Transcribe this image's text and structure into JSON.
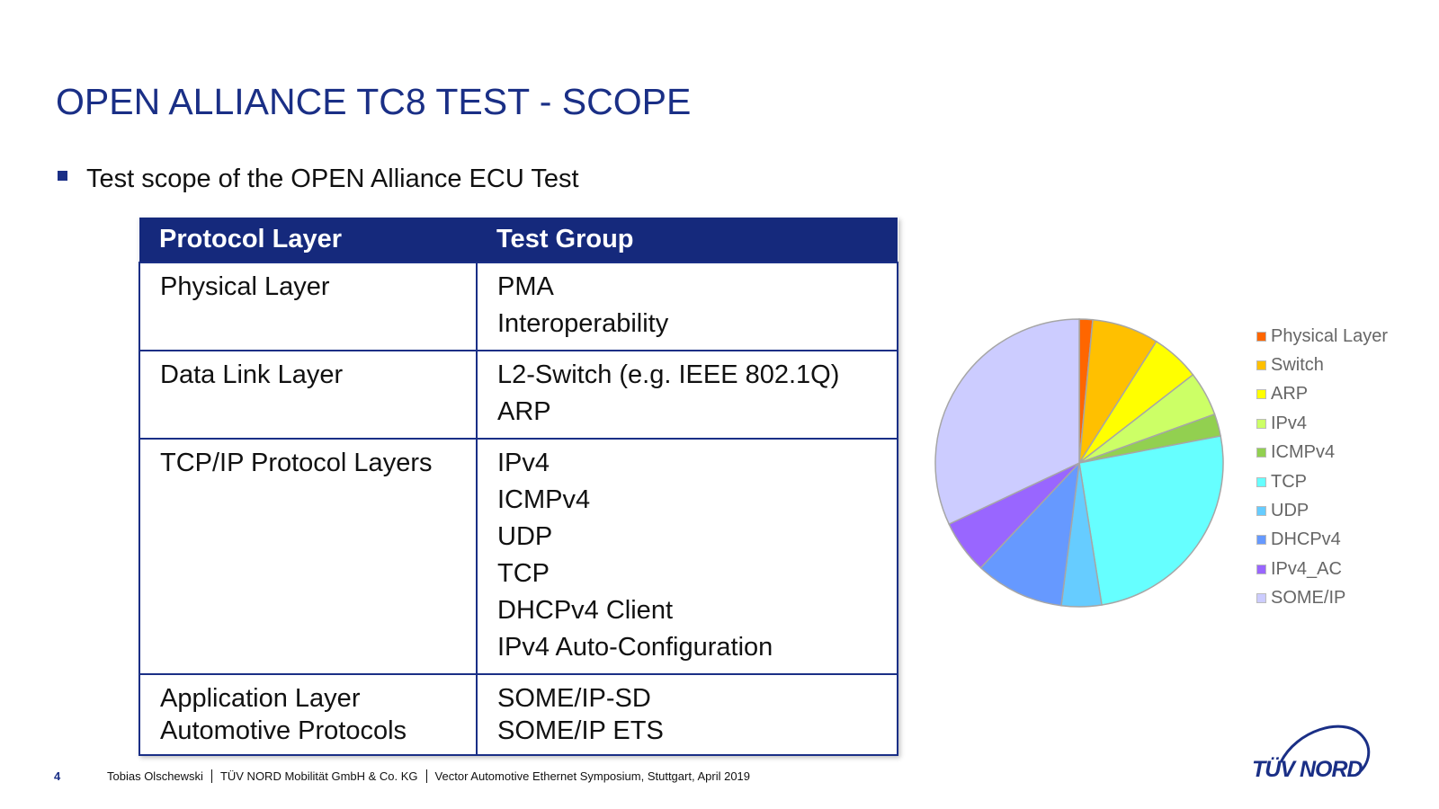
{
  "slide": {
    "title": "OPEN ALLIANCE TC8 TEST - SCOPE",
    "bullet": "Test scope of the OPEN Alliance ECU Test"
  },
  "table": {
    "headers": [
      "Protocol Layer",
      "Test Group"
    ],
    "rows": [
      {
        "layer": [
          "Physical Layer"
        ],
        "groups": [
          "PMA",
          "Interoperability"
        ]
      },
      {
        "layer": [
          "Data Link Layer"
        ],
        "groups": [
          "L2-Switch (e.g. IEEE 802.1Q)",
          "ARP"
        ]
      },
      {
        "layer": [
          "TCP/IP Protocol Layers"
        ],
        "groups": [
          "IPv4",
          "ICMPv4",
          "UDP",
          "TCP",
          "DHCPv4 Client",
          "IPv4 Auto-Configuration"
        ]
      },
      {
        "layer": [
          "Application Layer",
          "Automotive Protocols"
        ],
        "groups": [
          "SOME/IP-SD",
          "SOME/IP ETS"
        ]
      }
    ]
  },
  "chart_data": {
    "type": "pie",
    "categories": [
      "Physical Layer",
      "Switch",
      "ARP",
      "IPv4",
      "ICMPv4",
      "TCP",
      "UDP",
      "DHCPv4",
      "IPv4_AC",
      "SOME/IP"
    ],
    "values": [
      1.5,
      7.5,
      5.5,
      5,
      2.5,
      25.5,
      4.5,
      10,
      6,
      32
    ],
    "colors": [
      "#ff6600",
      "#ffc000",
      "#ffff00",
      "#ccff66",
      "#92d050",
      "#66ffff",
      "#66ccff",
      "#6699ff",
      "#9966ff",
      "#ccccff"
    ],
    "legend_position": "right"
  },
  "footer": {
    "page": "4",
    "author": "Tobias Olschewski",
    "company": "TÜV NORD Mobilität GmbH & Co. KG",
    "event": "Vector Automotive Ethernet Symposium, Stuttgart, April 2019"
  },
  "logo": {
    "text": "TÜV NORD"
  },
  "colors": {
    "brand_blue": "#1a2f86",
    "header_fill": "#15297c"
  }
}
